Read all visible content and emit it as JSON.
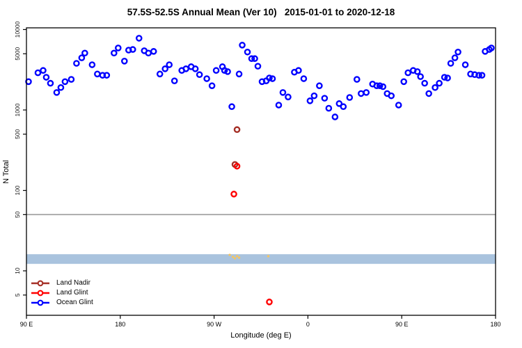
{
  "chart_data": {
    "type": "scatter",
    "title": "57.5S-52.5S Annual Mean (Ver 10)   2015-01-01 to 2020-12-18",
    "xlabel": "Longitude (deg E)",
    "ylabel": "N Total",
    "x_axis": {
      "range": [
        90,
        540
      ],
      "ticks": [
        {
          "pos": 90,
          "label": "90 E"
        },
        {
          "pos": 180,
          "label": "180"
        },
        {
          "pos": 270,
          "label": "90 W"
        },
        {
          "pos": 360,
          "label": "0"
        },
        {
          "pos": 450,
          "label": "90 E"
        },
        {
          "pos": 540,
          "label": "180"
        }
      ]
    },
    "y_axis": {
      "scale": "log",
      "range": [
        2.8,
        10500
      ],
      "ticks": [
        10000,
        5000,
        1000,
        500,
        100,
        50,
        10,
        5
      ]
    },
    "reference_line": {
      "value": 50,
      "color": "#9b9b9b"
    },
    "highlight_band": {
      "from": 12.2,
      "to": 16.1,
      "color": "#a9c3de"
    },
    "legend": [
      {
        "label": "Land Nadir",
        "color": "#a52f26"
      },
      {
        "label": "Land Glint",
        "color": "#ff0000"
      },
      {
        "label": "Ocean Glint",
        "color": "#0000ff"
      }
    ],
    "series": [
      {
        "name": "Ocean Glint",
        "color": "#0000ff",
        "marker": "open-circle",
        "points": [
          [
            92,
            2250
          ],
          [
            101,
            2900
          ],
          [
            106,
            3100
          ],
          [
            109,
            2550
          ],
          [
            113,
            2150
          ],
          [
            119,
            1650
          ],
          [
            123,
            1900
          ],
          [
            127,
            2250
          ],
          [
            133,
            2400
          ],
          [
            138,
            3800
          ],
          [
            143,
            4450
          ],
          [
            146,
            5100
          ],
          [
            153,
            3650
          ],
          [
            158,
            2800
          ],
          [
            163,
            2700
          ],
          [
            167,
            2700
          ],
          [
            174,
            5100
          ],
          [
            178,
            5900
          ],
          [
            184,
            4050
          ],
          [
            188,
            5550
          ],
          [
            192,
            5650
          ],
          [
            198,
            7800
          ],
          [
            203,
            5450
          ],
          [
            207,
            5100
          ],
          [
            212,
            5350
          ],
          [
            218,
            2800
          ],
          [
            223,
            3250
          ],
          [
            227,
            3650
          ],
          [
            232,
            2300
          ],
          [
            239,
            3100
          ],
          [
            243,
            3250
          ],
          [
            248,
            3450
          ],
          [
            252,
            3250
          ],
          [
            256,
            2750
          ],
          [
            263,
            2450
          ],
          [
            268,
            2000
          ],
          [
            272,
            3100
          ],
          [
            278,
            3450
          ],
          [
            280,
            3100
          ],
          [
            283,
            3000
          ],
          [
            287,
            1100
          ],
          [
            294,
            2800
          ],
          [
            297,
            6400
          ],
          [
            302,
            5250
          ],
          [
            306,
            4350
          ],
          [
            309,
            4350
          ],
          [
            312,
            3500
          ],
          [
            316,
            2250
          ],
          [
            320,
            2300
          ],
          [
            323,
            2500
          ],
          [
            326,
            2450
          ],
          [
            332,
            1150
          ],
          [
            336,
            1650
          ],
          [
            341,
            1450
          ],
          [
            347,
            2950
          ],
          [
            351,
            3100
          ],
          [
            356,
            2450
          ],
          [
            362,
            1300
          ],
          [
            366,
            1500
          ],
          [
            371,
            2000
          ],
          [
            376,
            1400
          ],
          [
            380,
            1050
          ],
          [
            386,
            820
          ],
          [
            390,
            1200
          ],
          [
            394,
            1100
          ],
          [
            400,
            1430
          ],
          [
            407,
            2400
          ],
          [
            411,
            1600
          ],
          [
            416,
            1650
          ],
          [
            422,
            2100
          ],
          [
            426,
            2000
          ],
          [
            429,
            2000
          ],
          [
            432,
            1950
          ],
          [
            436,
            1600
          ],
          [
            440,
            1500
          ],
          [
            447,
            1150
          ],
          [
            452,
            2250
          ],
          [
            456,
            2900
          ],
          [
            461,
            3100
          ],
          [
            465,
            3000
          ],
          [
            468,
            2600
          ],
          [
            472,
            2150
          ],
          [
            476,
            1600
          ],
          [
            482,
            1900
          ],
          [
            486,
            2150
          ],
          [
            491,
            2550
          ],
          [
            494,
            2500
          ],
          [
            497,
            3800
          ],
          [
            501,
            4450
          ],
          [
            504,
            5250
          ],
          [
            511,
            3650
          ],
          [
            516,
            2800
          ],
          [
            520,
            2750
          ],
          [
            524,
            2700
          ],
          [
            527,
            2700
          ],
          [
            530,
            5350
          ],
          [
            534,
            5650
          ],
          [
            536,
            5900
          ]
        ]
      },
      {
        "name": "Land Nadir",
        "color": "#a52f26",
        "marker": "open-circle",
        "points": [
          [
            292,
            570
          ],
          [
            290,
            210
          ]
        ]
      },
      {
        "name": "Land Glint",
        "color": "#ff0000",
        "marker": "open-circle",
        "points": [
          [
            292,
            200
          ],
          [
            289,
            90
          ],
          [
            323,
            4.1
          ]
        ]
      },
      {
        "name": "flagged-low-count",
        "color": "#f2c566",
        "marker": "small-dot",
        "points": [
          [
            285,
            15.8
          ],
          [
            288,
            14.9
          ],
          [
            290,
            14.3
          ],
          [
            292,
            15.2
          ],
          [
            294,
            14.6
          ],
          [
            322,
            15.2
          ]
        ]
      }
    ]
  }
}
